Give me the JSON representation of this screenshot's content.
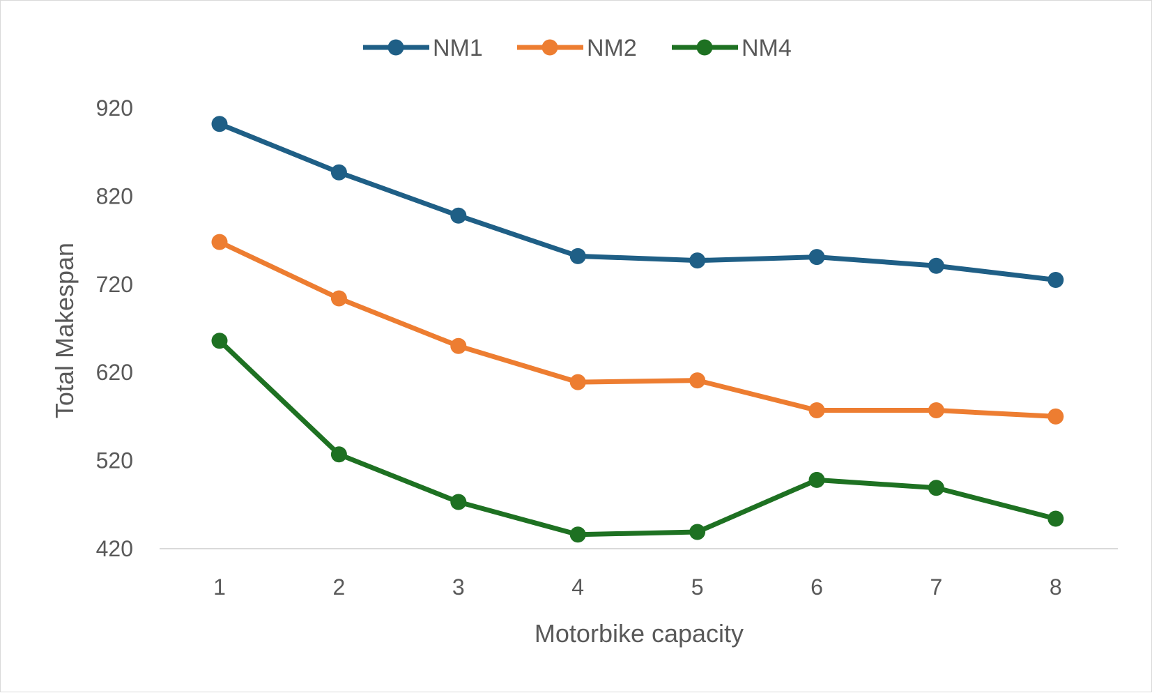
{
  "chart_data": {
    "type": "line",
    "title": "",
    "xlabel": "Motorbike capacity",
    "ylabel": "Total Makespan",
    "categories": [
      "1",
      "2",
      "3",
      "4",
      "5",
      "6",
      "7",
      "8"
    ],
    "yticks": [
      "420",
      "520",
      "620",
      "720",
      "820",
      "920"
    ],
    "ylim": [
      420,
      940
    ],
    "grid": false,
    "legend": "top-center",
    "series": [
      {
        "name": "NM1",
        "color": "#1f5f86",
        "values": [
          902,
          847,
          798,
          752,
          747,
          751,
          741,
          725
        ]
      },
      {
        "name": "NM2",
        "color": "#ed7d31",
        "values": [
          768,
          704,
          650,
          609,
          611,
          577,
          577,
          570
        ]
      },
      {
        "name": "NM4",
        "color": "#1e7122",
        "values": [
          656,
          527,
          473,
          436,
          439,
          498,
          489,
          454
        ]
      }
    ]
  }
}
